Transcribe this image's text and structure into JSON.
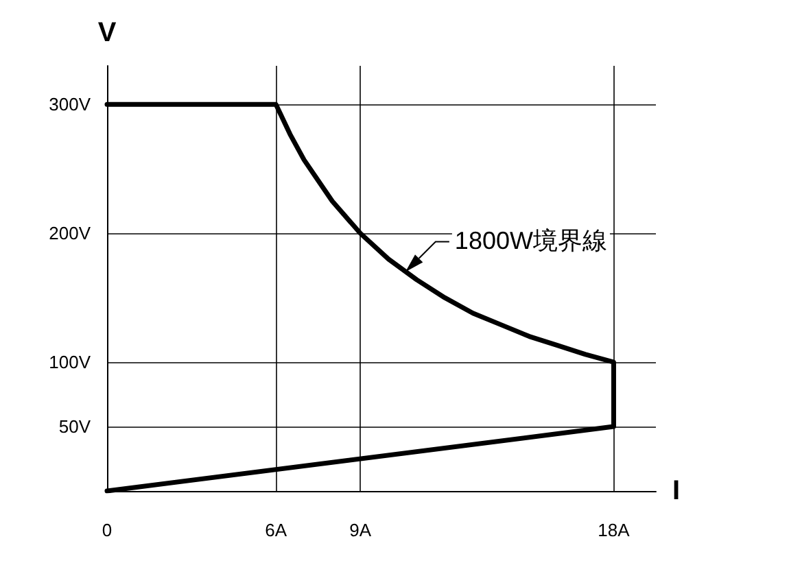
{
  "chart_data": {
    "type": "line",
    "xlabel": "I",
    "ylabel": "V",
    "x": [
      0,
      6,
      6.5,
      7,
      8,
      9,
      10,
      11,
      12,
      13,
      14,
      15,
      16,
      17,
      18,
      18,
      0
    ],
    "series": [
      {
        "color": "#000000",
        "values": [
          300,
          300,
          277,
          257,
          225,
          200,
          180,
          164,
          150,
          138,
          129,
          120,
          113,
          106,
          100,
          50,
          0
        ]
      }
    ],
    "xlim": [
      0,
      19.5
    ],
    "ylim": [
      0,
      330
    ],
    "xticks": [
      {
        "value": 0,
        "label": "0"
      },
      {
        "value": 6,
        "label": "6A"
      },
      {
        "value": 9,
        "label": "9A"
      },
      {
        "value": 18,
        "label": "18A"
      }
    ],
    "yticks": [
      {
        "value": 0,
        "label": null
      },
      {
        "value": 50,
        "label": "50V"
      },
      {
        "value": 100,
        "label": "100V"
      },
      {
        "value": 200,
        "label": "200V"
      },
      {
        "value": 300,
        "label": "300V"
      }
    ],
    "annotations": [
      {
        "text": "1800W境界線",
        "x": 10.6,
        "y": 170
      }
    ],
    "grid": true,
    "marker": "none",
    "line_style": "solid"
  }
}
